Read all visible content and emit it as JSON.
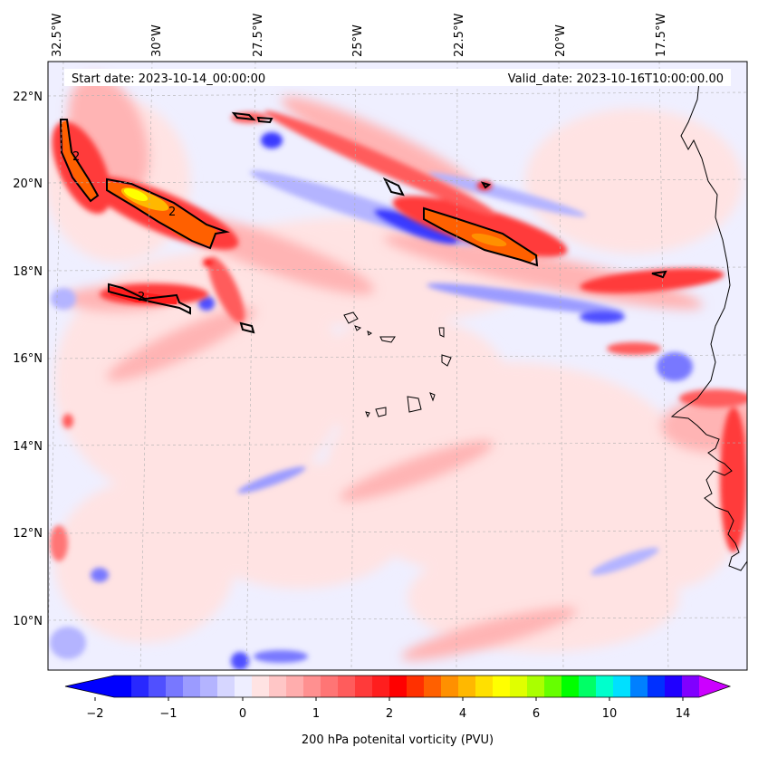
{
  "map": {
    "start_label": "Start date: 2023-10-14_00:00:00",
    "valid_label": "Valid_date: 2023-10-16T10:00:00.00",
    "lon_labels": [
      "32.5°W",
      "30°W",
      "27.5°W",
      "25°W",
      "22.5°W",
      "20°W",
      "17.5°W"
    ],
    "lat_labels": [
      "22°N",
      "20°N",
      "18°N",
      "16°N",
      "14°N",
      "12°N",
      "10°N"
    ],
    "contour_label": "2"
  },
  "colorbar": {
    "label": "200 hPa potenital vorticity (PVU)",
    "tick_labels": [
      "−2",
      "−1",
      "0",
      "1",
      "2",
      "4",
      "6",
      "10",
      "14"
    ],
    "colors": [
      "#0000ff",
      "#2828ff",
      "#5050ff",
      "#7878ff",
      "#9b9bff",
      "#b4b4ff",
      "#d6d6ff",
      "#eeeeff",
      "#ffe3e3",
      "#ffc6c6",
      "#ffadad",
      "#ff9090",
      "#ff7575",
      "#ff5c5c",
      "#ff3a3a",
      "#ff1e1e",
      "#ff0000",
      "#ff3000",
      "#ff6000",
      "#ff9000",
      "#ffb800",
      "#ffe000",
      "#ffff00",
      "#e0ff00",
      "#aaff00",
      "#66ff00",
      "#00ff00",
      "#00ff66",
      "#00ffcc",
      "#00e0ff",
      "#0080ff",
      "#0030ff",
      "#2000ff",
      "#8000ff"
    ],
    "under_color": "#0000ff",
    "over_color": "#cc00ff"
  },
  "colors": {
    "background": "#efefff",
    "contour": "#000000"
  }
}
